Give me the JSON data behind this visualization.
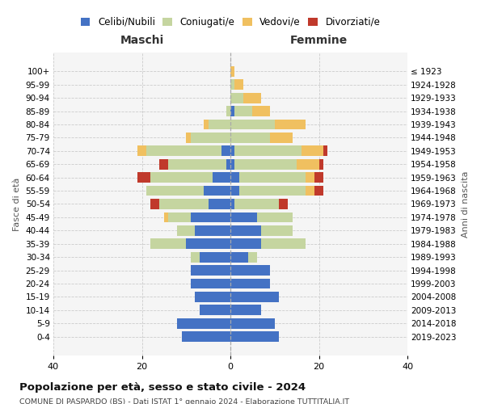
{
  "age_groups": [
    "0-4",
    "5-9",
    "10-14",
    "15-19",
    "20-24",
    "25-29",
    "30-34",
    "35-39",
    "40-44",
    "45-49",
    "50-54",
    "55-59",
    "60-64",
    "65-69",
    "70-74",
    "75-79",
    "80-84",
    "85-89",
    "90-94",
    "95-99",
    "100+"
  ],
  "birth_years": [
    "2019-2023",
    "2014-2018",
    "2009-2013",
    "2004-2008",
    "1999-2003",
    "1994-1998",
    "1989-1993",
    "1984-1988",
    "1979-1983",
    "1974-1978",
    "1969-1973",
    "1964-1968",
    "1959-1963",
    "1954-1958",
    "1949-1953",
    "1944-1948",
    "1939-1943",
    "1934-1938",
    "1929-1933",
    "1924-1928",
    "≤ 1923"
  ],
  "colors": {
    "celibi": "#4472c4",
    "coniugati": "#c5d5a0",
    "vedovi": "#f0c060",
    "divorziati": "#c0392b"
  },
  "maschi": {
    "celibi": [
      11,
      12,
      7,
      8,
      9,
      9,
      7,
      10,
      8,
      9,
      5,
      6,
      4,
      1,
      2,
      0,
      0,
      0,
      0,
      0,
      0
    ],
    "coniugati": [
      0,
      0,
      0,
      0,
      0,
      0,
      2,
      8,
      4,
      5,
      11,
      13,
      14,
      13,
      17,
      9,
      5,
      1,
      0,
      0,
      0
    ],
    "vedovi": [
      0,
      0,
      0,
      0,
      0,
      0,
      0,
      0,
      0,
      1,
      0,
      0,
      0,
      0,
      2,
      1,
      1,
      0,
      0,
      0,
      0
    ],
    "divorziati": [
      0,
      0,
      0,
      0,
      0,
      0,
      0,
      0,
      0,
      0,
      2,
      0,
      3,
      2,
      0,
      0,
      0,
      0,
      0,
      0,
      0
    ]
  },
  "femmine": {
    "celibi": [
      11,
      10,
      7,
      11,
      9,
      9,
      4,
      7,
      7,
      6,
      1,
      2,
      2,
      1,
      1,
      0,
      0,
      1,
      0,
      0,
      0
    ],
    "coniugati": [
      0,
      0,
      0,
      0,
      0,
      0,
      2,
      10,
      7,
      8,
      10,
      15,
      15,
      14,
      15,
      9,
      10,
      4,
      3,
      1,
      0
    ],
    "vedovi": [
      0,
      0,
      0,
      0,
      0,
      0,
      0,
      0,
      0,
      0,
      0,
      2,
      2,
      5,
      5,
      5,
      7,
      4,
      4,
      2,
      1
    ],
    "divorziati": [
      0,
      0,
      0,
      0,
      0,
      0,
      0,
      0,
      0,
      0,
      2,
      2,
      2,
      1,
      1,
      0,
      0,
      0,
      0,
      0,
      0
    ]
  },
  "xlim": 40,
  "title": "Popolazione per età, sesso e stato civile - 2024",
  "subtitle": "COMUNE DI PASPARDO (BS) - Dati ISTAT 1° gennaio 2024 - Elaborazione TUTTITALIA.IT",
  "ylabel_left": "Fasce di età",
  "ylabel_right": "Anni di nascita",
  "xlabel_maschi": "Maschi",
  "xlabel_femmine": "Femmine",
  "legend_labels": [
    "Celibi/Nubili",
    "Coniugati/e",
    "Vedovi/e",
    "Divorziati/e"
  ],
  "bg_color": "#f5f5f5"
}
